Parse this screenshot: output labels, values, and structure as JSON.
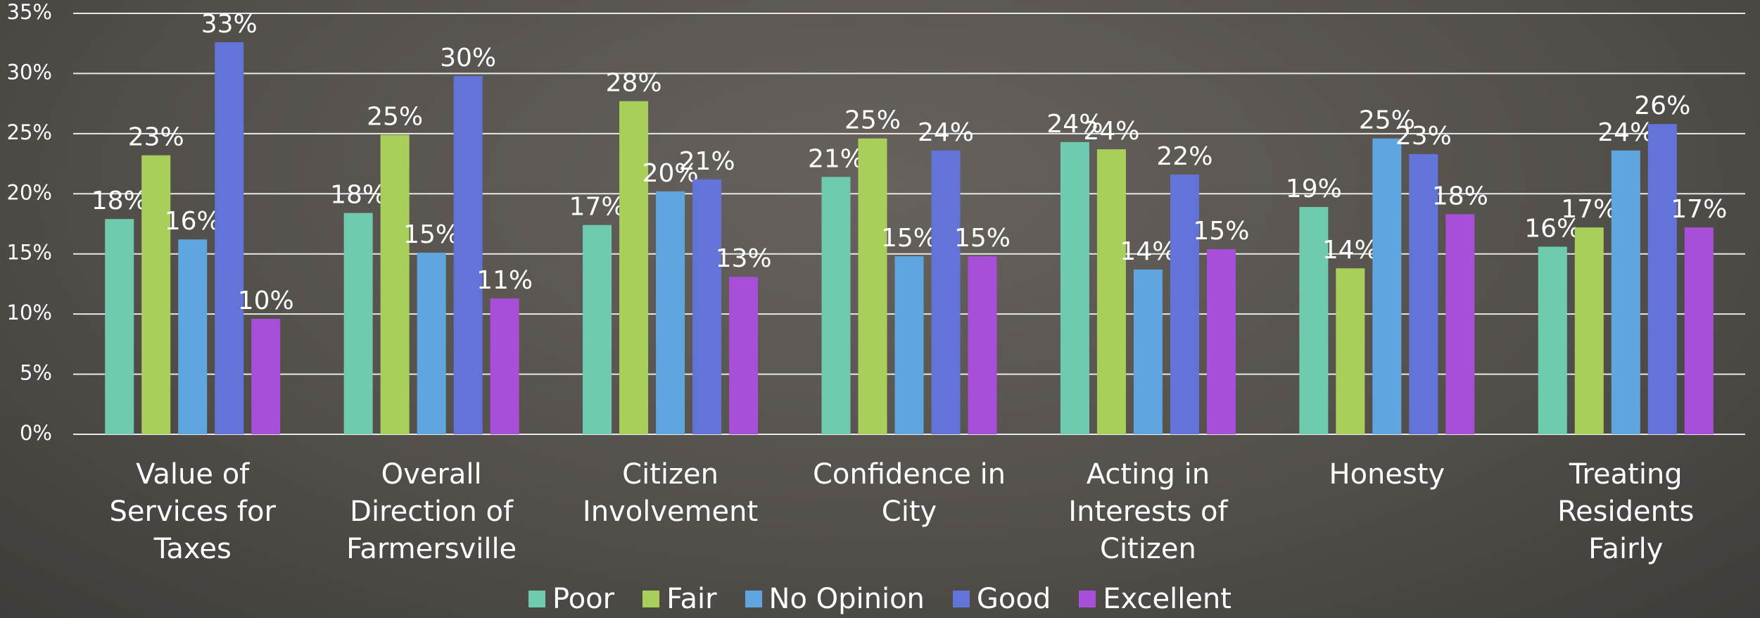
{
  "chart_data": {
    "type": "bar",
    "categories": [
      "Value of Services for Taxes",
      "Overall Direction of Farmersville",
      "Citizen Involvement",
      "Confidence in City",
      "Acting in Interests of Citizen",
      "Honesty",
      "Treating Residents Fairly"
    ],
    "series": [
      {
        "name": "Poor",
        "color": "#6fcbb0",
        "values": [
          17.9,
          18.4,
          17.4,
          21.4,
          24.3,
          18.9,
          15.6
        ],
        "value_labels": [
          "18%",
          "18%",
          "17%",
          "21%",
          "24%",
          "19%",
          "16%"
        ]
      },
      {
        "name": "Fair",
        "color": "#a8cf5a",
        "values": [
          23.2,
          24.9,
          27.7,
          24.6,
          23.7,
          13.8,
          17.2
        ],
        "value_labels": [
          "23%",
          "25%",
          "28%",
          "25%",
          "24%",
          "14%",
          "17%"
        ]
      },
      {
        "name": "No Opinion",
        "color": "#5fa6e0",
        "values": [
          16.2,
          15.1,
          20.2,
          14.8,
          13.7,
          24.6,
          23.6
        ],
        "value_labels": [
          "16%",
          "15%",
          "20%",
          "15%",
          "14%",
          "25%",
          "24%"
        ]
      },
      {
        "name": "Good",
        "color": "#6374d9",
        "values": [
          32.6,
          29.8,
          21.2,
          23.6,
          21.6,
          23.3,
          25.8
        ],
        "value_labels": [
          "33%",
          "30%",
          "21%",
          "24%",
          "22%",
          "23%",
          "26%"
        ]
      },
      {
        "name": "Excellent",
        "color": "#a74fd8",
        "values": [
          9.6,
          11.3,
          13.1,
          14.8,
          15.4,
          18.3,
          17.2
        ],
        "value_labels": [
          "10%",
          "11%",
          "13%",
          "15%",
          "15%",
          "18%",
          "17%"
        ]
      }
    ],
    "ylim": [
      0,
      35
    ],
    "yticks": [
      {
        "value": 0,
        "label": "0%"
      },
      {
        "value": 5,
        "label": "5%"
      },
      {
        "value": 10,
        "label": "10%"
      },
      {
        "value": 15,
        "label": "15%"
      },
      {
        "value": 20,
        "label": "20%"
      },
      {
        "value": 25,
        "label": "25%"
      },
      {
        "value": 30,
        "label": "30%"
      },
      {
        "value": 35,
        "label": "35%"
      }
    ],
    "grid": true,
    "legend": "bottom"
  }
}
